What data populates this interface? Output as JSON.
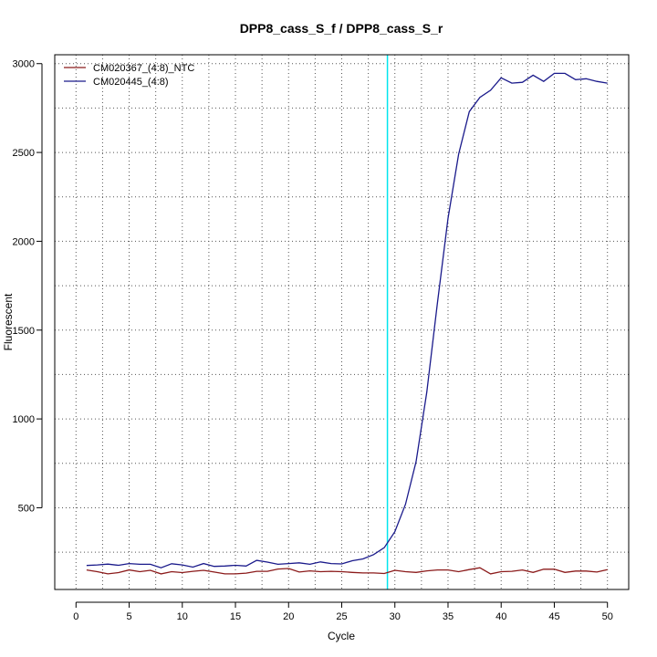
{
  "chart_data": {
    "type": "line",
    "title": "DPP8_cass_S_f / DPP8_cass_S_r",
    "xlabel": "Cycle",
    "ylabel": "Fluorescent",
    "xlim": [
      -2,
      52
    ],
    "ylim": [
      40,
      3050
    ],
    "x_ticks": [
      0,
      5,
      10,
      15,
      20,
      25,
      30,
      35,
      40,
      45,
      50
    ],
    "y_ticks": [
      500,
      1000,
      1500,
      2000,
      2500,
      3000
    ],
    "grid": true,
    "legend_position": "top-left",
    "threshold_cycle": 29.3,
    "threshold_color": "#00e5ee",
    "x": [
      1,
      2,
      3,
      4,
      5,
      6,
      7,
      8,
      9,
      10,
      11,
      12,
      13,
      14,
      15,
      16,
      17,
      18,
      19,
      20,
      21,
      22,
      23,
      24,
      25,
      26,
      27,
      28,
      29,
      30,
      31,
      32,
      33,
      34,
      35,
      36,
      37,
      38,
      39,
      40,
      41,
      42,
      43,
      44,
      45,
      46,
      47,
      48,
      49,
      50
    ],
    "series": [
      {
        "name": "CM020367_(4:8)_NTC",
        "color": "#8b1a1a",
        "values": [
          150,
          140,
          128,
          135,
          150,
          140,
          148,
          128,
          140,
          135,
          142,
          148,
          138,
          128,
          128,
          132,
          142,
          142,
          155,
          158,
          138,
          145,
          140,
          142,
          140,
          136,
          133,
          133,
          130,
          148,
          140,
          136,
          145,
          150,
          150,
          140,
          152,
          162,
          128,
          140,
          142,
          150,
          136,
          154,
          154,
          136,
          144,
          144,
          138,
          152
        ]
      },
      {
        "name": "CM020445_(4:8)",
        "color": "#1a1a8b",
        "values": [
          175,
          178,
          183,
          176,
          186,
          182,
          182,
          162,
          185,
          178,
          166,
          186,
          170,
          172,
          176,
          172,
          204,
          194,
          182,
          186,
          190,
          182,
          195,
          186,
          184,
          202,
          212,
          236,
          275,
          365,
          520,
          760,
          1150,
          1650,
          2130,
          2490,
          2730,
          2810,
          2850,
          2920,
          2890,
          2895,
          2935,
          2900,
          2945,
          2945,
          2910,
          2915,
          2900,
          2890
        ]
      }
    ]
  }
}
